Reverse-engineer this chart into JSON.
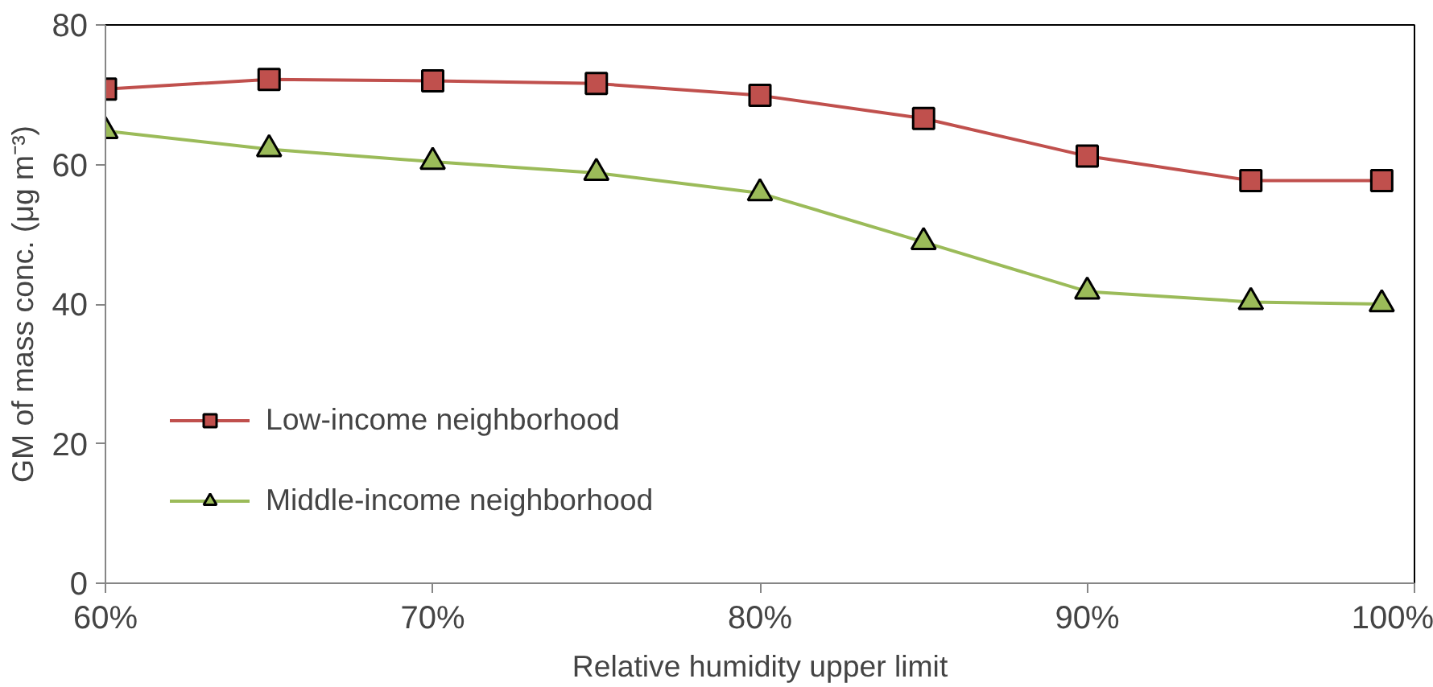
{
  "chart_data": {
    "type": "line",
    "xlabel": "Relative humidity upper limit",
    "ylabel": "GM of mass conc. (μg m⁻³)",
    "x": [
      60,
      65,
      70,
      75,
      80,
      85,
      90,
      95,
      99
    ],
    "series": [
      {
        "name": "Low-income neighborhood",
        "color": "#c0504d",
        "marker": "square",
        "values": [
          70.8,
          72.2,
          72.0,
          71.6,
          69.9,
          66.6,
          61.2,
          57.7,
          57.7
        ]
      },
      {
        "name": "Middle-income neighborhood",
        "color": "#9bbb59",
        "marker": "triangle",
        "values": [
          64.8,
          62.2,
          60.4,
          58.8,
          55.9,
          48.9,
          41.8,
          40.3,
          40.0
        ]
      }
    ],
    "xlim": [
      60,
      100
    ],
    "ylim": [
      0,
      80
    ],
    "xticks": [
      {
        "value": 60,
        "label": "60%"
      },
      {
        "value": 70,
        "label": "70%"
      },
      {
        "value": 80,
        "label": "80%"
      },
      {
        "value": 90,
        "label": "90%"
      },
      {
        "value": 100,
        "label": "100%"
      }
    ],
    "yticks": [
      0,
      20,
      40,
      60,
      80
    ],
    "grid": false,
    "legend": "bottom left",
    "line_style": "solid"
  }
}
